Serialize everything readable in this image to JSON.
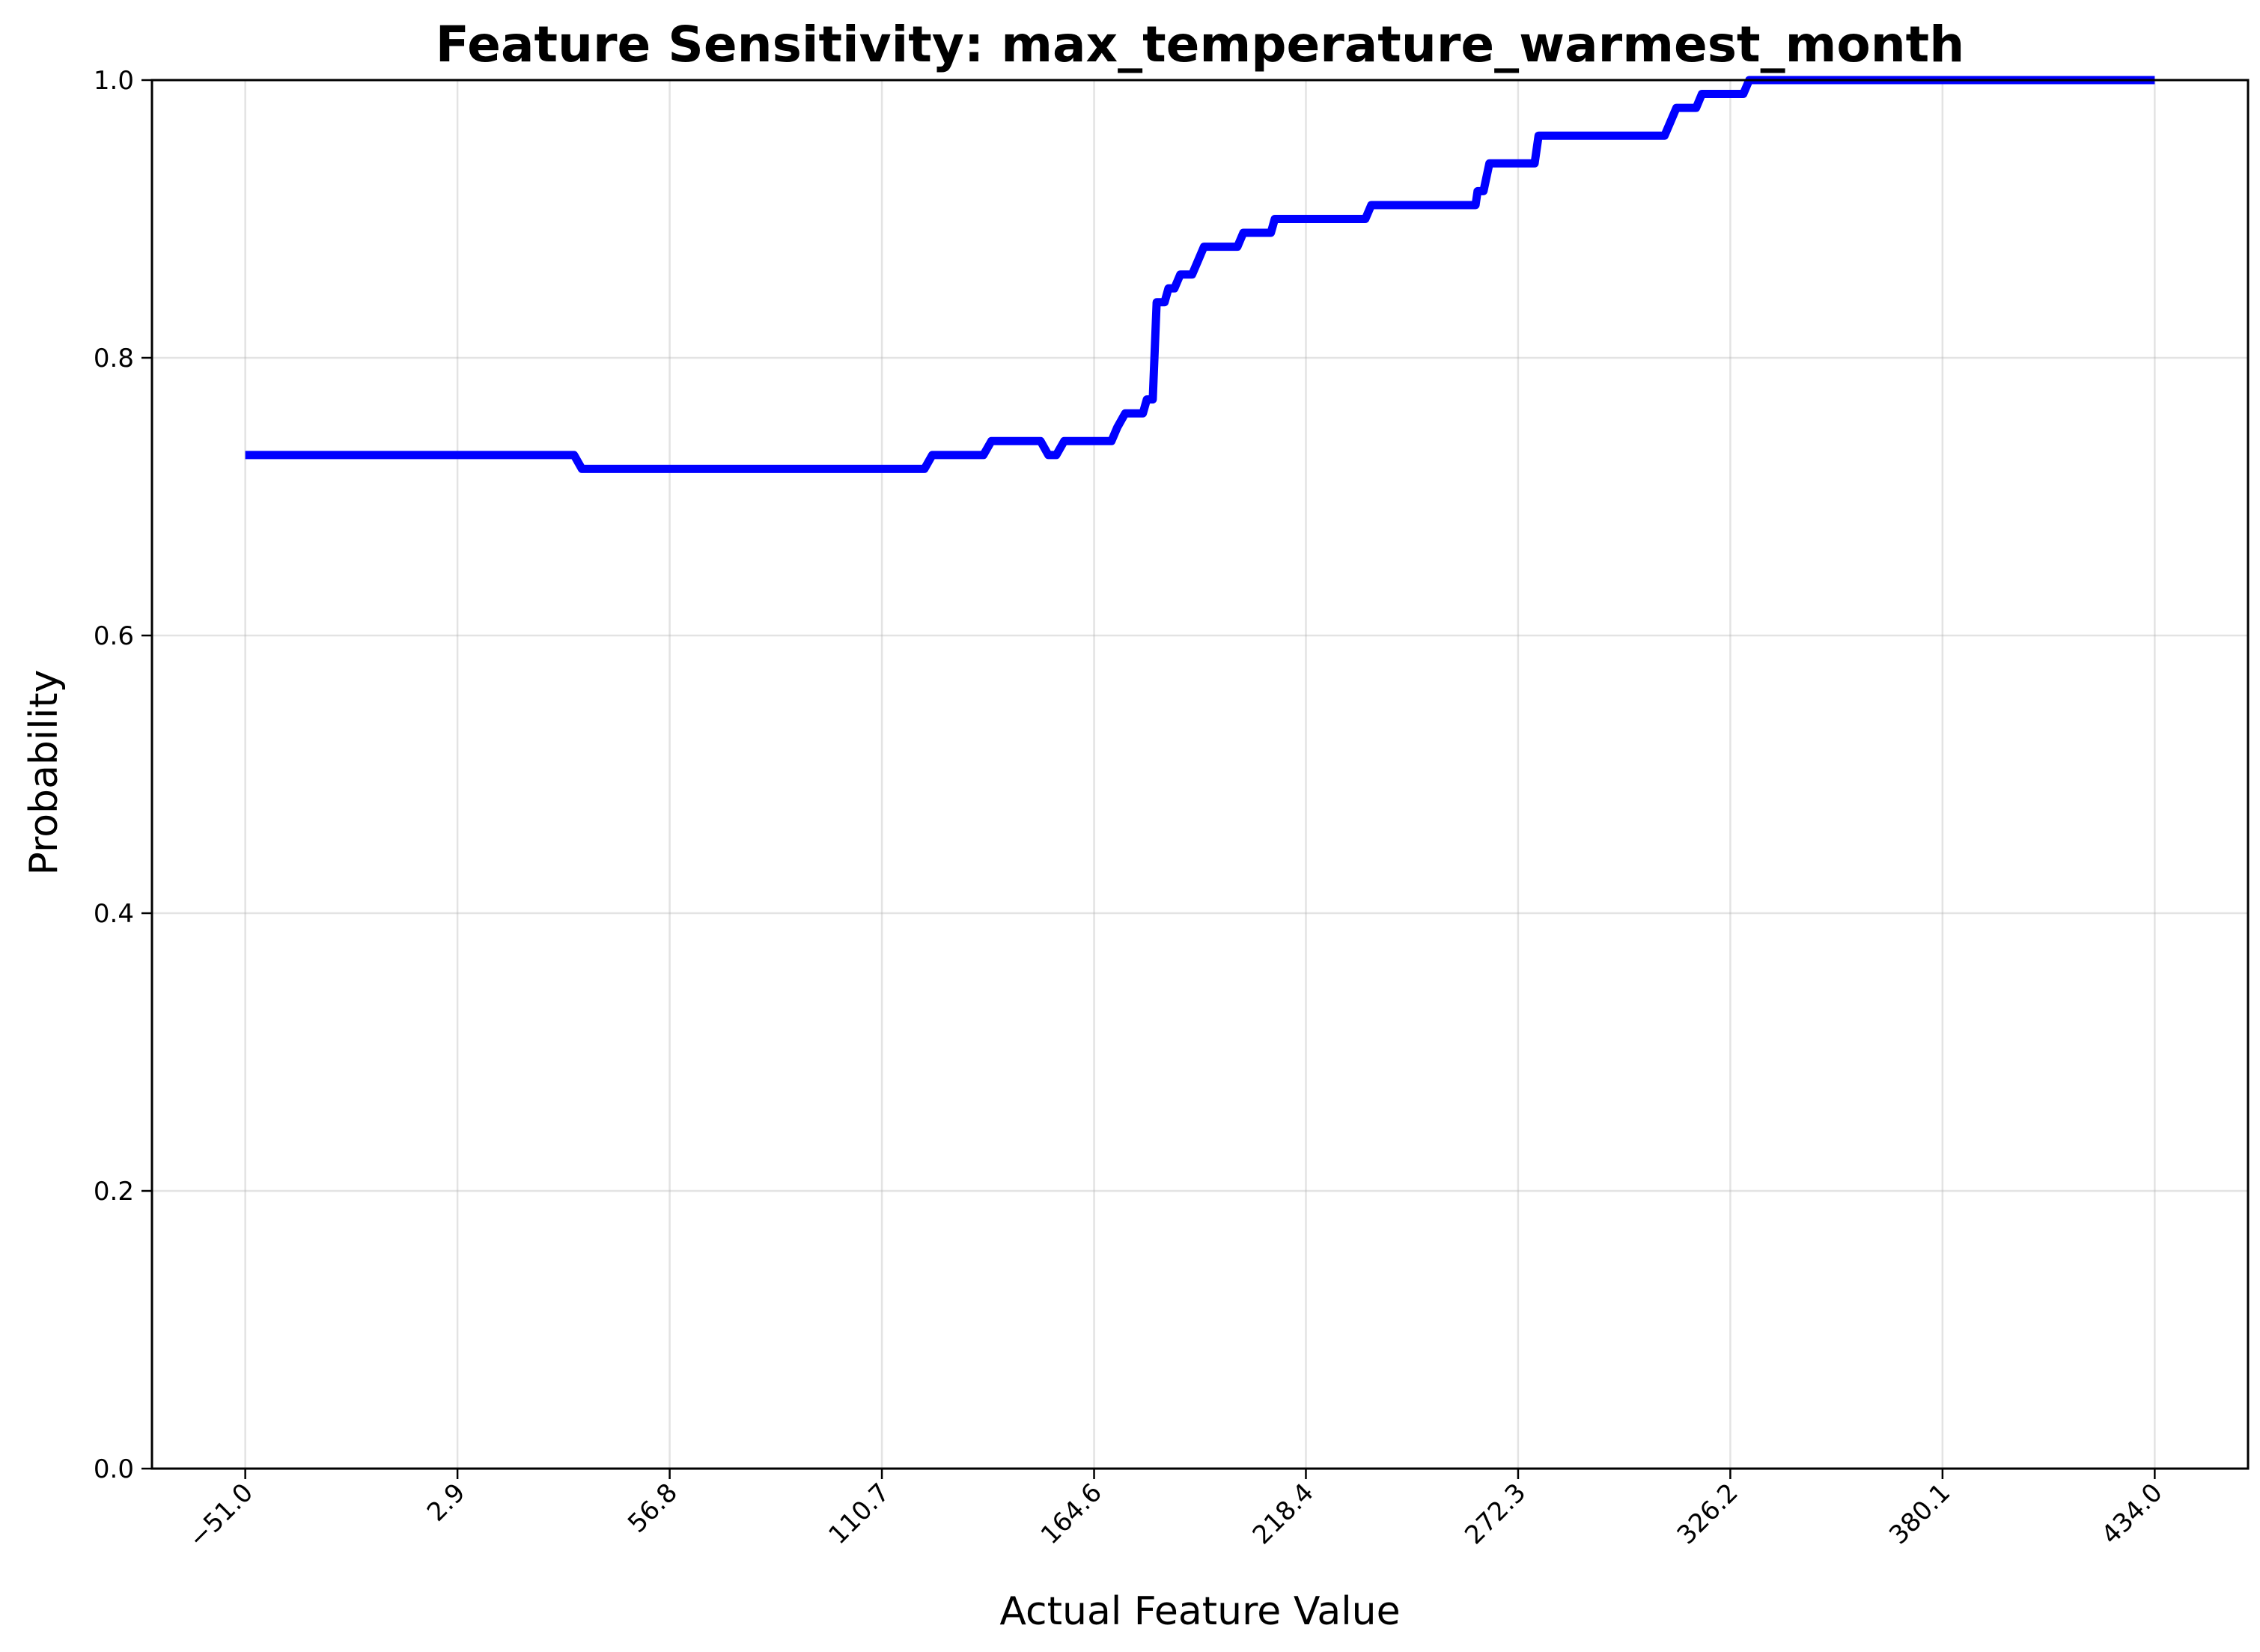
{
  "chart_data": {
    "type": "line",
    "title": "Feature Sensitivity: max_temperature_warmest_month",
    "xlabel": "Actual Feature Value",
    "ylabel": "Probability",
    "xlim": [
      -74.7,
      457.7
    ],
    "ylim": [
      0,
      1
    ],
    "x_ticks": [
      -51.0,
      2.9,
      56.8,
      110.7,
      164.6,
      218.4,
      272.3,
      326.2,
      380.1,
      434.0
    ],
    "x_tick_labels": [
      "−51.0",
      "2.9",
      "56.8",
      "110.7",
      "164.6",
      "218.4",
      "272.3",
      "326.2",
      "380.1",
      "434.0"
    ],
    "y_ticks": [
      0.0,
      0.2,
      0.4,
      0.6,
      0.8,
      1.0
    ],
    "y_tick_labels": [
      "0.0",
      "0.2",
      "0.4",
      "0.6",
      "0.8",
      "1.0"
    ],
    "grid": true,
    "series": [
      {
        "color": "#0000ff",
        "x": [
          -51.0,
          32.5,
          34.5,
          121.5,
          123.5,
          136.5,
          138.5,
          151.0,
          153.0,
          155.0,
          157.0,
          169.0,
          170.5,
          172.5,
          177.0,
          178.0,
          179.5,
          180.5,
          182.5,
          183.5,
          185.0,
          186.5,
          188.5,
          189.5,
          191.0,
          192.5,
          201.0,
          202.5,
          209.5,
          210.5,
          233.5,
          235.0,
          261.5,
          262.0,
          263.5,
          265.0,
          276.5,
          277.5,
          309.5,
          311.0,
          312.5,
          314.0,
          317.5,
          319.0,
          329.5,
          331.0,
          434.0
        ],
        "y": [
          0.73,
          0.73,
          0.72,
          0.72,
          0.73,
          0.73,
          0.74,
          0.74,
          0.73,
          0.73,
          0.74,
          0.74,
          0.75,
          0.76,
          0.76,
          0.77,
          0.77,
          0.84,
          0.84,
          0.85,
          0.85,
          0.86,
          0.86,
          0.86,
          0.87,
          0.88,
          0.88,
          0.89,
          0.89,
          0.9,
          0.9,
          0.91,
          0.91,
          0.92,
          0.92,
          0.94,
          0.94,
          0.96,
          0.96,
          0.97,
          0.98,
          0.98,
          0.98,
          0.99,
          0.99,
          1.0,
          1.0
        ]
      }
    ]
  }
}
